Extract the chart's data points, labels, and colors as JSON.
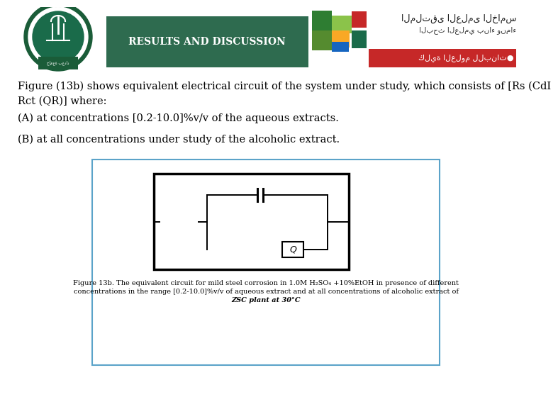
{
  "bg_color": "#ffffff",
  "header_box_color": "#2e6b4f",
  "header_text": "RESULTS AND DISCUSSION",
  "header_text_color": "#ffffff",
  "body_text_color": "#000000",
  "para1": "Figure (13b) shows equivalent electrical circuit of the system under study, which consists of [Rs (CdI\nRct (QR)] where:",
  "para2": "(A) at concentrations [0.2-10.0]%v/v of the aqueous extracts.",
  "para3": "(B) at all concentrations under study of the alcoholic extract.",
  "figure_caption_line1": "Figure 13b. The equivalent circuit for mild steel corrosion in 1.0M H₂SO₄ +10%EtOH in presence of different",
  "figure_caption_line2": "concentrations in the range [0.2-10.0]%v/v of aqueous extract and at all concentrations of alcoholic extract of",
  "figure_caption_line3": "ZSC plant at 30°C",
  "font_size_body": 10.5,
  "font_size_caption": 7.0
}
